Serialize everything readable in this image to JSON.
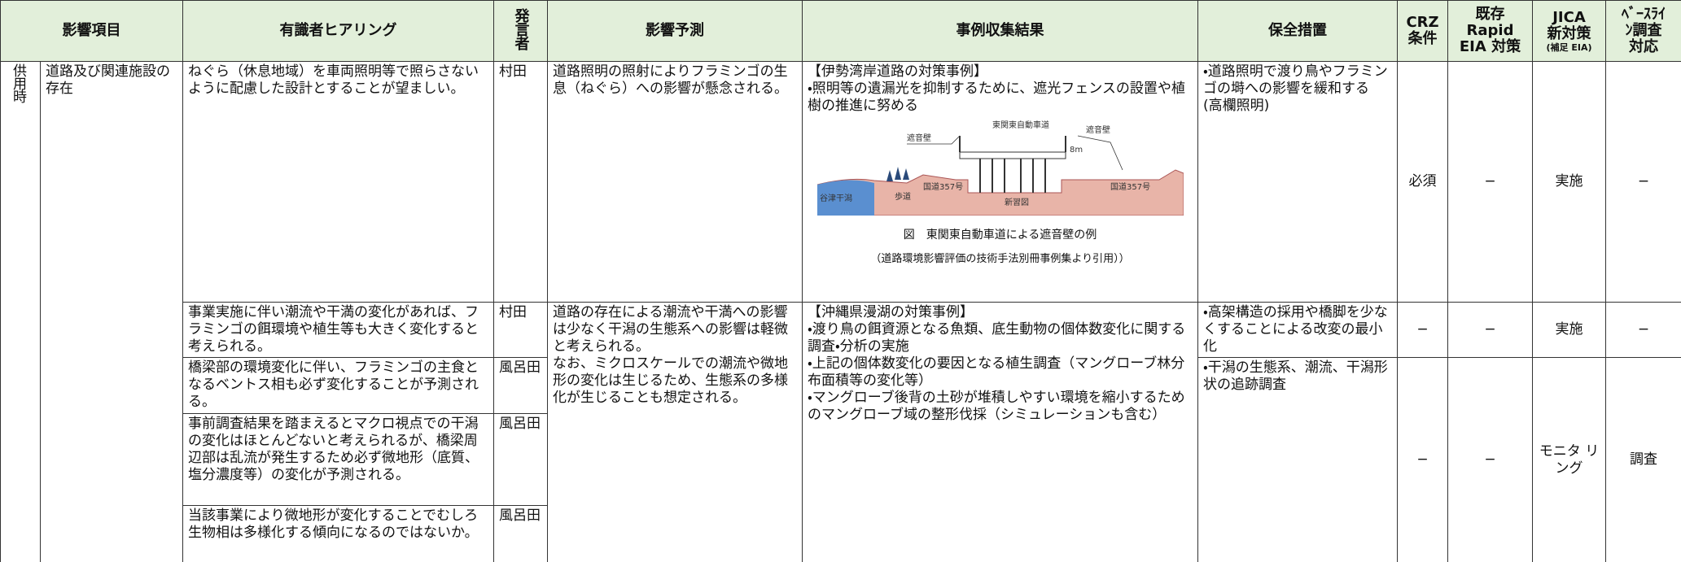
{
  "header": {
    "impact_item": "影響項目",
    "hearing": "有識者ヒアリング",
    "speaker": "発言者",
    "prediction": "影響予測",
    "case_results": "事例収集結果",
    "measures": "保全措置",
    "crz": [
      "CRZ",
      "条件"
    ],
    "rapid_eia": [
      "既存",
      "Rapid",
      "EIA 対策"
    ],
    "jica": [
      "JICA",
      "新対策",
      "(補足 EIA)"
    ],
    "baseline": [
      "ﾍﾞｰｽﾗｲ",
      "ﾝ調査",
      "対応"
    ]
  },
  "phase": "供用時",
  "item": "道路及び関連施設の存在",
  "hearings": [
    {
      "text": "ねぐら（休息地域）を車両照明等で照らさないように配慮した設計とすることが望ましい。",
      "speaker": "村田"
    },
    {
      "text": "事業実施に伴い潮流や干満の変化があれば、フラミンゴの餌環境や植生等も大きく変化すると考えられる。",
      "speaker": "村田"
    },
    {
      "text": "橋梁部の環境変化に伴い、フラミンゴの主食となるベントス相も必ず変化することが予測される。",
      "speaker": "風呂田"
    },
    {
      "text": "事前調査結果を踏まえるとマクロ視点での干潟の変化はほとんどないと考えられるが、橋梁周辺部は乱流が発生するため必ず微地形（底質、塩分濃度等）の変化が予測される。",
      "speaker": "風呂田"
    },
    {
      "text": "当該事業により微地形が変化することでむしろ生物相は多様化する傾向になるのではないか。",
      "speaker": "風呂田"
    }
  ],
  "predictions": [
    [
      "道路照明の照射によりフラミンゴの生息（ねぐら）への影響が懸念される。"
    ],
    [
      "道路の存在による潮流や干満への影響は少なく干潟の生態系への影響は軽微と考えられる。",
      "なお、ミクロスケールでの潮流や微地形の変化は生じるため、生態系の多様化が生じることも想定される。"
    ]
  ],
  "cases": [
    {
      "title": "【伊勢湾岸道路の対策事例】",
      "bullets": [
        "・照明等の遺漏光を抑制するために、遮光フェンスの設置や植樹の推進に努める"
      ],
      "figure": {
        "labels": [
          "東関東自動車道",
          "遮音壁",
          "遮音壁",
          "8m",
          "国道357号",
          "国道357号",
          "谷津干潟",
          "歩道",
          "新習図"
        ],
        "caption": "図　東関東自動車道による遮音壁の例",
        "source": "（道路環境影響評価の技術手法別冊事例集より引用））"
      }
    },
    {
      "title": "【沖縄県漫湖の対策事例】",
      "bullets": [
        "・渡り鳥の餌資源となる魚類、底生動物の個体数変化に関する調査・分析の実施",
        "・上記の個体数変化の要因となる植生調査（マングローブ林分布面積等の変化等）",
        "・マングローブ後背の土砂が堆積しやすい環境を縮小するためのマングローブ域の整形伐採（シミュレーションも含む）"
      ]
    }
  ],
  "measures": [
    [
      "・道路照明で渡り鳥やフラミンゴの塒への影響を緩和する",
      "(高欄照明)"
    ],
    [
      "・高架構造の採用や橋脚を少なくすることによる改変の最小化"
    ],
    [
      "・干潟の生態系、潮流、干潟形状の追跡調査"
    ]
  ],
  "crz": [
    "必須",
    "−",
    "−"
  ],
  "rapid_eia": [
    "−",
    "−",
    "−"
  ],
  "jica": [
    "実施",
    "実施",
    "モニタ リング"
  ],
  "baseline": [
    "−",
    "−",
    "調査"
  ]
}
